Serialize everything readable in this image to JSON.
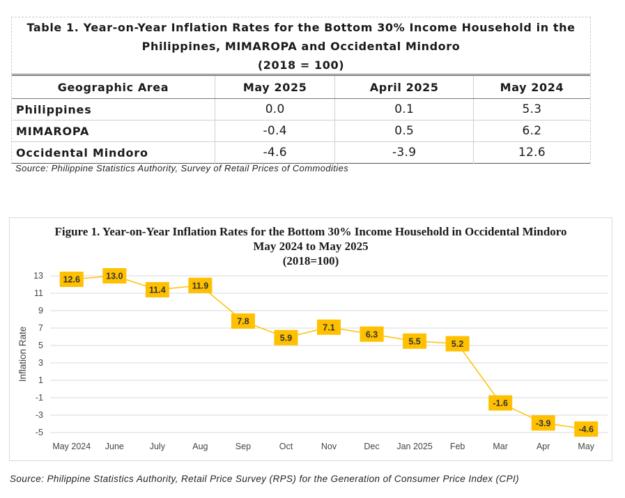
{
  "table": {
    "title_line1": "Table 1. Year-on-Year Inflation Rates for the Bottom 30% Income Household in the",
    "title_line2": "Philippines, MIMAROPA and Occidental Mindoro",
    "title_line3": "(2018 = 100)",
    "headers": [
      "Geographic Area",
      "May 2025",
      "April 2025",
      "May 2024"
    ],
    "rows": [
      {
        "area": "Philippines",
        "may2025": "0.0",
        "apr2025": "0.1",
        "may2024": "5.3"
      },
      {
        "area": "MIMAROPA",
        "may2025": "-0.4",
        "apr2025": "0.5",
        "may2024": "6.2"
      },
      {
        "area": "Occidental Mindoro",
        "may2025": "-4.6",
        "apr2025": "-3.9",
        "may2024": "12.6"
      }
    ],
    "source": "Source: Philippine Statistics Authority, Survey of Retail Prices of Commodities"
  },
  "chart_data": {
    "type": "line",
    "title": "Figure 1. Year-on-Year Inflation Rates for the Bottom 30% Income Household in Occidental Mindoro",
    "subtitle": "May 2024 to May 2025",
    "subtitle2": "(2018=100)",
    "xlabel": "",
    "ylabel": "Inflation Rate",
    "categories": [
      "May 2024",
      "June",
      "July",
      "Aug",
      "Sep",
      "Oct",
      "Nov",
      "Dec",
      "Jan 2025",
      "Feb",
      "Mar",
      "Apr",
      "May"
    ],
    "series": [
      {
        "values": [
          12.6,
          13.0,
          11.4,
          11.9,
          7.8,
          5.9,
          7.1,
          6.3,
          5.5,
          5.2,
          -1.6,
          -3.9,
          -4.6
        ]
      }
    ],
    "labels": [
      "12.6",
      "13.0",
      "11.4",
      "11.9",
      "7.8",
      "5.9",
      "7.1",
      "6.3",
      "5.5",
      "5.2",
      "-1.6",
      "-3.9",
      "-4.6"
    ],
    "ylim": [
      -5,
      13
    ],
    "yticks": [
      13,
      11,
      9,
      7,
      5,
      3,
      1,
      -1,
      -3,
      -5
    ],
    "grid": true,
    "line_color": "#FFC000",
    "label_fill": "#FFC000"
  },
  "source2": "Source: Philippine Statistics Authority, Retail Price Survey (RPS) for the Generation of Consumer Price Index (CPI)"
}
